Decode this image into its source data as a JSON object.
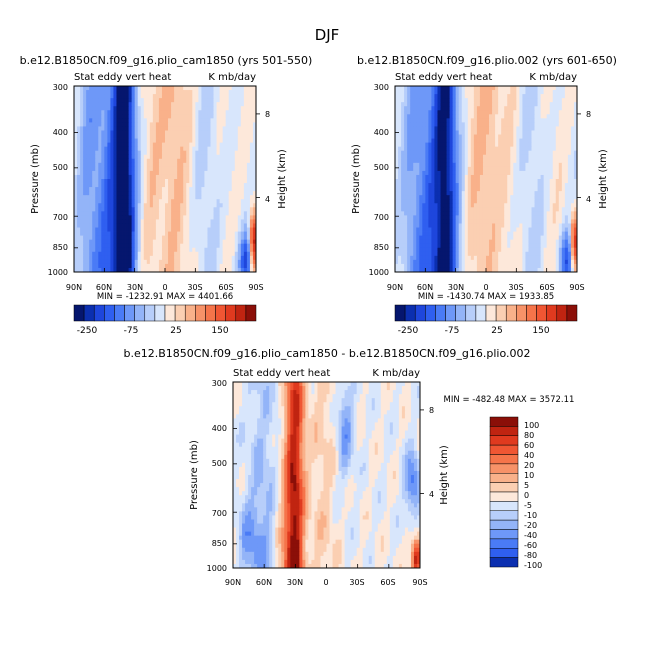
{
  "figure": {
    "title": "DJF"
  },
  "colors": {
    "blues": [
      "#05166e",
      "#0b2fb0",
      "#1e46dc",
      "#2f5ff0",
      "#4a7bf6",
      "#6e98f8",
      "#93b4f8",
      "#b7cefa",
      "#d8e6fc"
    ],
    "reds": [
      "#fde8da",
      "#fbcfb2",
      "#f9b18a",
      "#f79268",
      "#f5744a",
      "#f05633",
      "#e03a1f",
      "#c02411",
      "#8b0f08"
    ]
  },
  "chart_data": [
    {
      "type": "heatmap",
      "title": "b.e12.B1850CN.f09_g16.plio_cam1850 (yrs 501-550)",
      "subtitle_left": "Stat eddy vert heat",
      "subtitle_right": "K mb/day",
      "ylabel": "Pressure (mb)",
      "ylabel_right": "Height (km)",
      "x_ticks": [
        "90N",
        "60N",
        "30N",
        "0",
        "30S",
        "60S",
        "90S"
      ],
      "y_ticks": [
        "300",
        "400",
        "500",
        "700",
        "850",
        "1000"
      ],
      "y_ticks_right": [
        "8",
        "4"
      ],
      "ylim": [
        1000,
        300
      ],
      "stats": "MIN = -1232.91   MAX = 4401.66",
      "colorbar_labels": [
        "-250",
        "-75",
        "25",
        "150"
      ]
    },
    {
      "type": "heatmap",
      "title": "b.e12.B1850CN.f09_g16.plio.002 (yrs 601-650)",
      "subtitle_left": "Stat eddy vert heat",
      "subtitle_right": "K mb/day",
      "ylabel": "Pressure (mb)",
      "ylabel_right": "Height (km)",
      "x_ticks": [
        "90N",
        "60N",
        "30N",
        "0",
        "30S",
        "60S",
        "90S"
      ],
      "y_ticks": [
        "300",
        "400",
        "500",
        "700",
        "850",
        "1000"
      ],
      "y_ticks_right": [
        "8",
        "4"
      ],
      "ylim": [
        1000,
        300
      ],
      "stats": "MIN = -1430.74   MAX = 1933.85",
      "colorbar_labels": [
        "-250",
        "-75",
        "25",
        "150"
      ]
    },
    {
      "type": "heatmap",
      "title": "b.e12.B1850CN.f09_g16.plio_cam1850 - b.e12.B1850CN.f09_g16.plio.002",
      "subtitle_left": "Stat eddy vert heat",
      "subtitle_right": "K mb/day",
      "ylabel": "Pressure (mb)",
      "ylabel_right": "Height (km)",
      "x_ticks": [
        "90N",
        "60N",
        "30N",
        "0",
        "30S",
        "60S",
        "90S"
      ],
      "y_ticks": [
        "300",
        "400",
        "500",
        "700",
        "850",
        "1000"
      ],
      "y_ticks_right": [
        "8",
        "4"
      ],
      "ylim": [
        1000,
        300
      ],
      "stats": "MIN = -482.48   MAX = 3572.11",
      "colorbar_labels": [
        "100",
        "80",
        "60",
        "40",
        "20",
        "10",
        "5",
        "0",
        "-5",
        "-10",
        "-20",
        "-40",
        "-60",
        "-80",
        "-100"
      ]
    }
  ]
}
